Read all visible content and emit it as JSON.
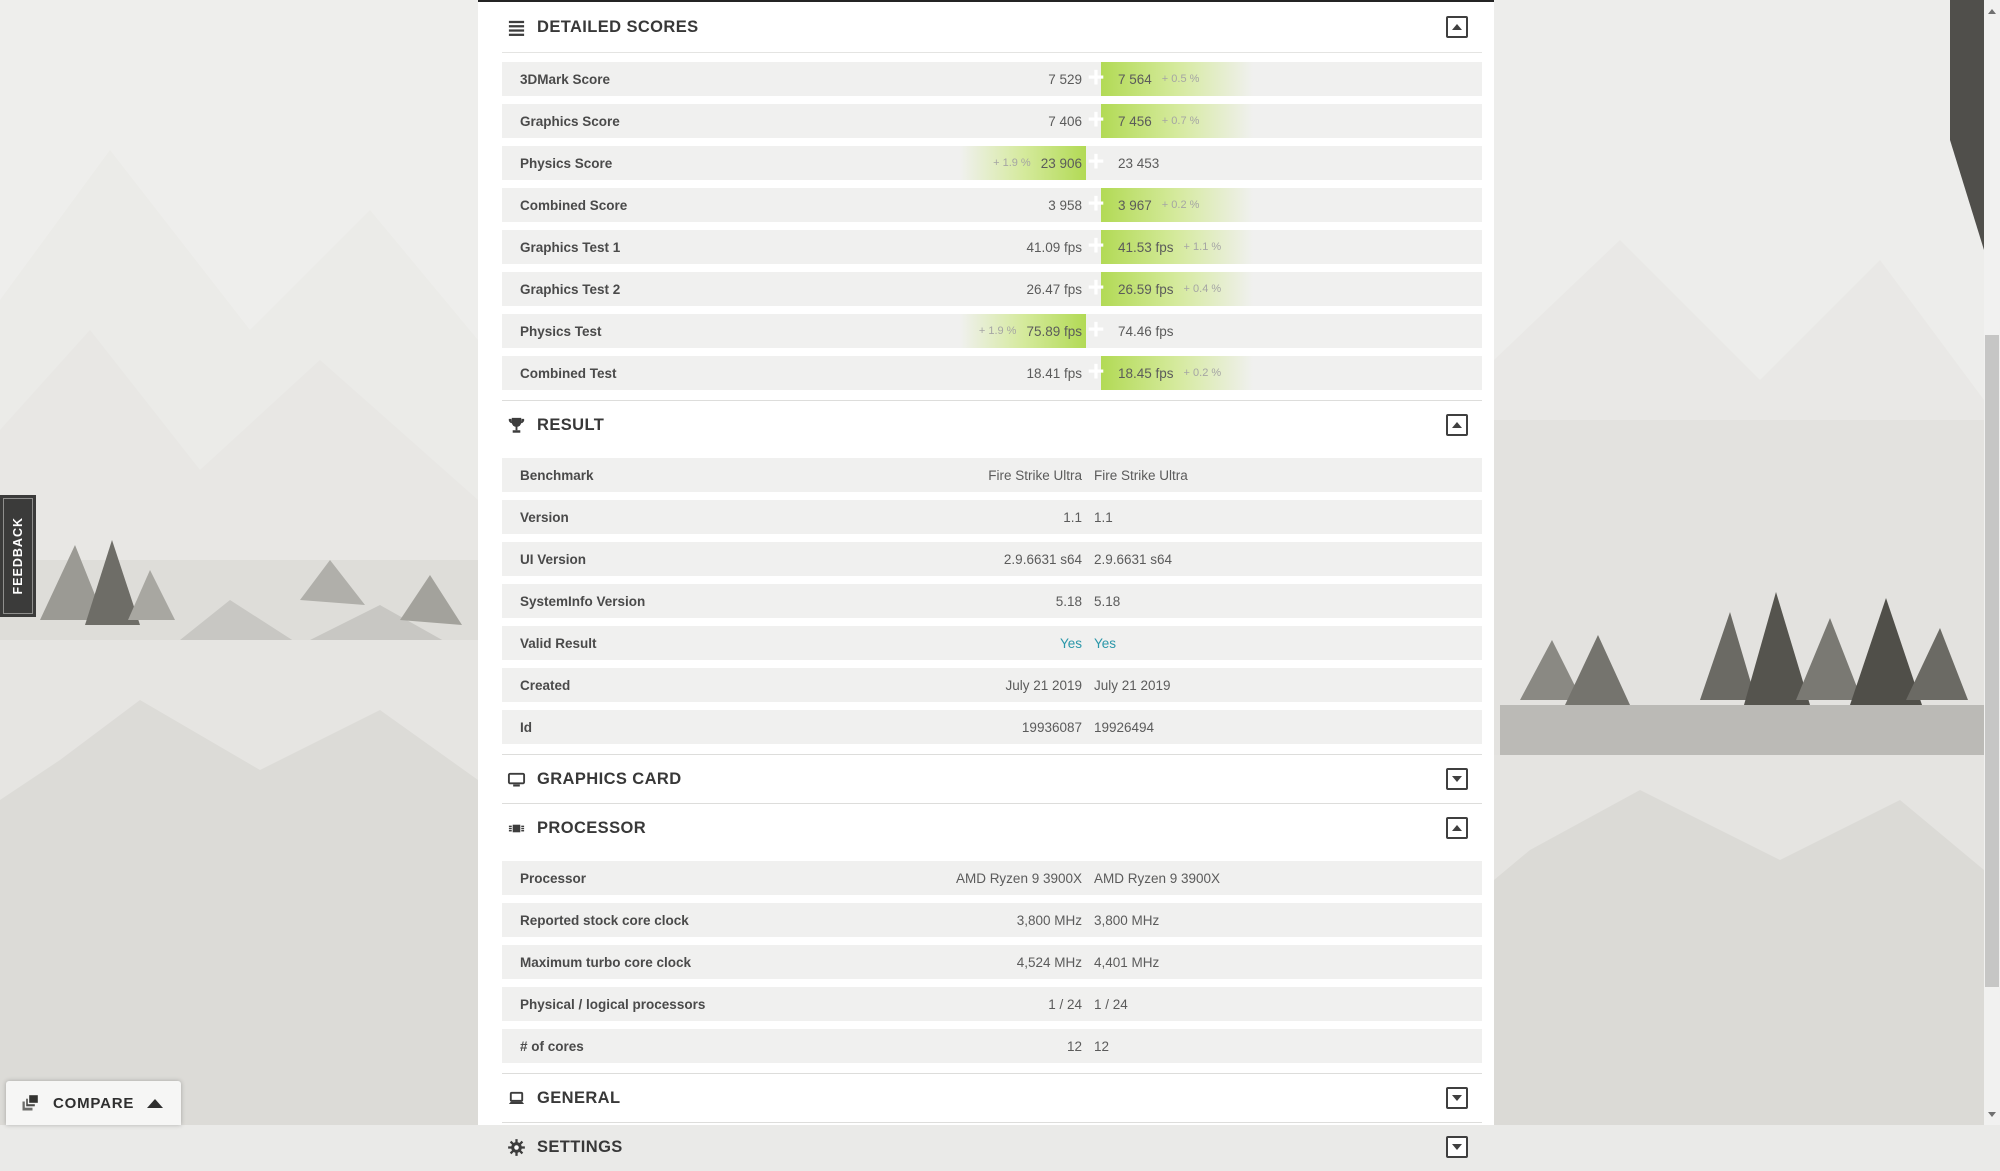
{
  "feedback": {
    "label": "FEEDBACK"
  },
  "compare": {
    "label": "COMPARE"
  },
  "colors": {
    "highlight_green": "#b2da55",
    "highlight_green_mid": "#d5ea9d",
    "valid_teal": "#2b97a9",
    "row_bg": "#f0f0ef"
  },
  "sections": [
    {
      "id": "detailed-scores",
      "title": "DETAILED SCORES",
      "icon": "list-icon",
      "expanded": true,
      "rows": [
        {
          "type": "score",
          "label": "3DMark Score",
          "left": "7 529",
          "right": "7 564",
          "winner": "right",
          "pct": "+ 0.5 %"
        },
        {
          "type": "score",
          "label": "Graphics Score",
          "left": "7 406",
          "right": "7 456",
          "winner": "right",
          "pct": "+ 0.7 %"
        },
        {
          "type": "score",
          "label": "Physics Score",
          "left": "23 906",
          "right": "23 453",
          "winner": "left",
          "pct": "+ 1.9 %"
        },
        {
          "type": "score",
          "label": "Combined Score",
          "left": "3 958",
          "right": "3 967",
          "winner": "right",
          "pct": "+ 0.2 %"
        },
        {
          "type": "score",
          "label": "Graphics Test 1",
          "left": "41.09 fps",
          "right": "41.53 fps",
          "winner": "right",
          "pct": "+ 1.1 %"
        },
        {
          "type": "score",
          "label": "Graphics Test 2",
          "left": "26.47 fps",
          "right": "26.59 fps",
          "winner": "right",
          "pct": "+ 0.4 %"
        },
        {
          "type": "score",
          "label": "Physics Test",
          "left": "75.89 fps",
          "right": "74.46 fps",
          "winner": "left",
          "pct": "+ 1.9 %"
        },
        {
          "type": "score",
          "label": "Combined Test",
          "left": "18.41 fps",
          "right": "18.45 fps",
          "winner": "right",
          "pct": "+ 0.2 %"
        }
      ]
    },
    {
      "id": "result",
      "title": "RESULT",
      "icon": "trophy-icon",
      "expanded": true,
      "rows": [
        {
          "type": "info",
          "label": "Benchmark",
          "left": "Fire Strike Ultra",
          "right": "Fire Strike Ultra"
        },
        {
          "type": "info",
          "label": "Version",
          "left": "1.1",
          "right": "1.1"
        },
        {
          "type": "info",
          "label": "UI Version",
          "left": "2.9.6631 s64",
          "right": "2.9.6631 s64"
        },
        {
          "type": "info",
          "label": "SystemInfo Version",
          "left": "5.18",
          "right": "5.18"
        },
        {
          "type": "info",
          "label": "Valid Result",
          "left": "Yes",
          "right": "Yes",
          "accent": true
        },
        {
          "type": "info",
          "label": "Created",
          "left": "July 21 2019",
          "right": "July 21 2019"
        },
        {
          "type": "info",
          "label": "Id",
          "left": "19936087",
          "right": "19926494"
        }
      ]
    },
    {
      "id": "graphics-card",
      "title": "GRAPHICS CARD",
      "icon": "monitor-icon",
      "expanded": false,
      "rows": []
    },
    {
      "id": "processor",
      "title": "PROCESSOR",
      "icon": "cpu-icon",
      "expanded": true,
      "rows": [
        {
          "type": "info",
          "label": "Processor",
          "left": "AMD Ryzen 9 3900X",
          "right": "AMD Ryzen 9 3900X"
        },
        {
          "type": "info",
          "label": "Reported stock core clock",
          "left": "3,800 MHz",
          "right": "3,800 MHz"
        },
        {
          "type": "info",
          "label": "Maximum turbo core clock",
          "left": "4,524 MHz",
          "right": "4,401 MHz"
        },
        {
          "type": "info",
          "label": "Physical / logical processors",
          "left": "1 / 24",
          "right": "1 / 24"
        },
        {
          "type": "info",
          "label": "# of cores",
          "left": "12",
          "right": "12"
        }
      ]
    },
    {
      "id": "general",
      "title": "GENERAL",
      "icon": "laptop-icon",
      "expanded": false,
      "rows": []
    },
    {
      "id": "settings",
      "title": "SETTINGS",
      "icon": "gear-icon",
      "expanded": false,
      "rows": []
    }
  ]
}
